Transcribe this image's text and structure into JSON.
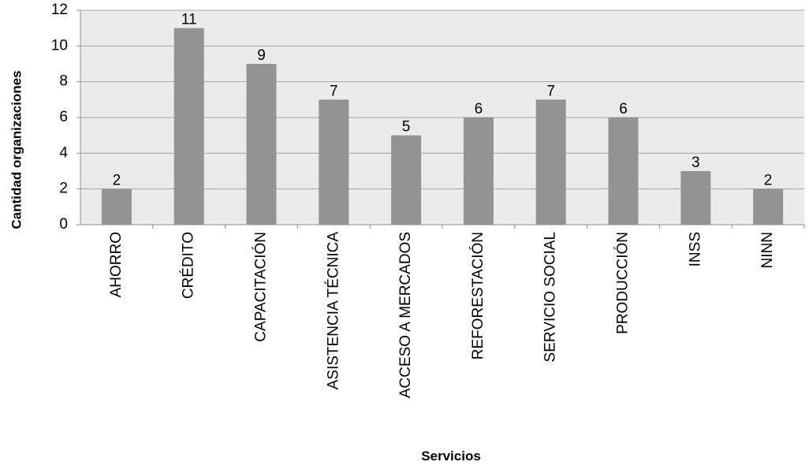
{
  "chart_data": {
    "type": "bar",
    "categories": [
      "AHORRO",
      "CRÉDITO",
      "CAPACITACIÓN",
      "ASISTENCIA TÉCNICA",
      "ACCESO A MERCADOS",
      "REFORESTACIÓN",
      "SERVICIO SOCIAL",
      "PRODUCCIÓN",
      "INSS",
      "NINN"
    ],
    "values": [
      2,
      11,
      9,
      7,
      5,
      6,
      7,
      6,
      3,
      2
    ],
    "data_labels": [
      "2",
      "11",
      "9",
      "7",
      "5",
      "6",
      "7",
      "6",
      "3",
      "2"
    ],
    "xlabel": "Servicios",
    "ylabel": "Cantidad  organizaciones",
    "ylim": [
      0,
      12
    ],
    "yticks": [
      0,
      2,
      4,
      6,
      8,
      10,
      12
    ],
    "ytick_labels": [
      "0",
      "2",
      "4",
      "6",
      "8",
      "10",
      "12"
    ],
    "grid": true,
    "legend": "none",
    "colors": {
      "bar": "#939393",
      "plot_background": "#ebebeb",
      "gridline": "#a6a6a6",
      "axis": "#8c8c8c"
    }
  }
}
